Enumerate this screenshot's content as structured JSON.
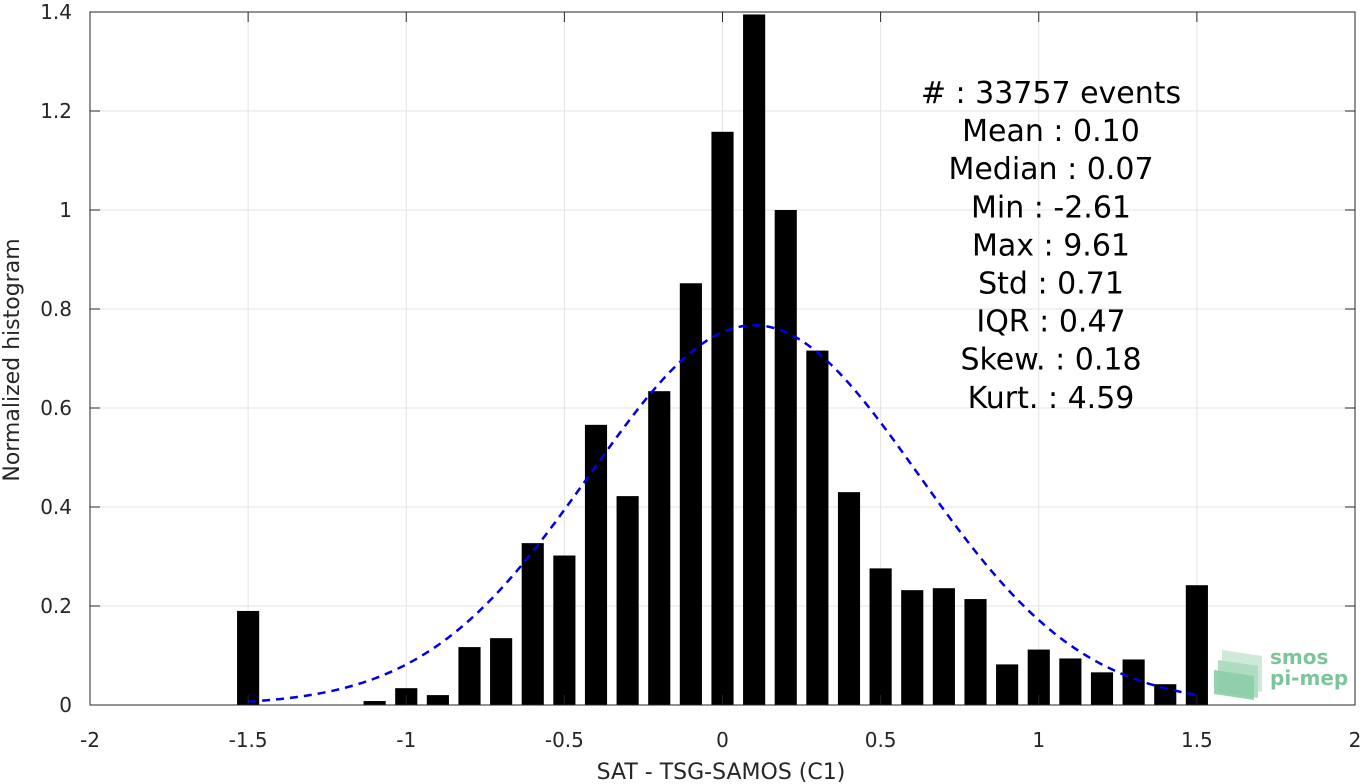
{
  "chart_data": {
    "type": "bar",
    "xlabel": "SAT - TSG-SAMOS (C1)",
    "ylabel": "Normalized histogram",
    "xlim": [
      -2,
      2
    ],
    "ylim": [
      0,
      1.4
    ],
    "xticks": [
      -2,
      -1.5,
      -1,
      -0.5,
      0,
      0.5,
      1,
      1.5,
      2
    ],
    "xtick_labels": [
      "-2",
      "-1.5",
      "-1",
      "-0.5",
      "0",
      "0.5",
      "1",
      "1.5",
      "2"
    ],
    "yticks": [
      0,
      0.2,
      0.4,
      0.6,
      0.8,
      1,
      1.2,
      1.4
    ],
    "ytick_labels": [
      "0",
      "0.2",
      "0.4",
      "0.6",
      "0.8",
      "1",
      "1.2",
      "1.4"
    ],
    "grid": true,
    "bar_color": "#000000",
    "bar_width": 0.07,
    "x": [
      -1.5,
      -1.4,
      -1.3,
      -1.2,
      -1.1,
      -1.0,
      -0.9,
      -0.8,
      -0.7,
      -0.6,
      -0.5,
      -0.4,
      -0.3,
      -0.2,
      -0.1,
      0.0,
      0.1,
      0.2,
      0.3,
      0.4,
      0.5,
      0.6,
      0.7,
      0.8,
      0.9,
      1.0,
      1.1,
      1.2,
      1.3,
      1.4,
      1.5
    ],
    "values": [
      0.19,
      0,
      0,
      0,
      0.008,
      0.034,
      0.02,
      0.117,
      0.135,
      0.327,
      0.302,
      0.566,
      0.422,
      0.634,
      0.852,
      1.158,
      1.395,
      1.0,
      0.716,
      0.43,
      0.276,
      0.232,
      0.236,
      0.214,
      0.082,
      0.112,
      0.094,
      0.066,
      0.092,
      0.042,
      0.242
    ],
    "fit": {
      "type": "normal",
      "color": "#0000e6",
      "style": "dashed",
      "mean": 0.1,
      "std": 0.52,
      "x_range": [
        -1.5,
        1.5
      ]
    },
    "annotations": [
      "#  : 33757 events",
      "Mean : 0.10",
      "Median : 0.07",
      "Min : -2.61",
      "Max : 9.61",
      "Std : 0.71",
      "IQR : 0.47",
      "Skew. : 0.18",
      "Kurt. : 4.59"
    ],
    "logo": {
      "line1": "smos",
      "line2": "pi-mep",
      "color": "#7cc49a"
    }
  }
}
